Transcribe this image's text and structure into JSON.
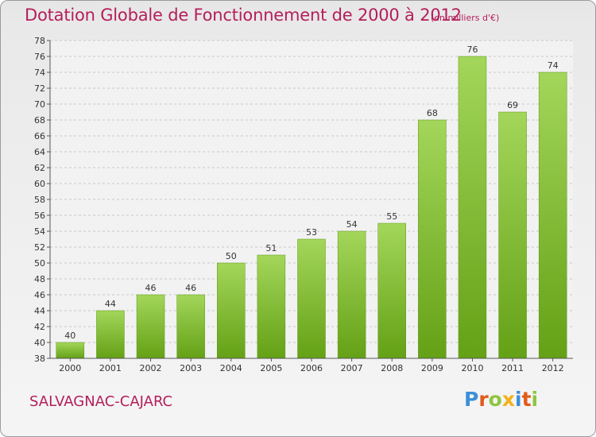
{
  "header": {
    "title": "Dotation Globale de Fonctionnement de 2000 à 2012",
    "subtitle": "(en milliers d'€)"
  },
  "footer": {
    "commune": "SALVAGNAC-CAJARC",
    "logo_letters": [
      "P",
      "r",
      "o",
      "x",
      "i",
      "t",
      "i"
    ],
    "logo_colors": [
      "#3a8fd8",
      "#e25a1c",
      "#8cc63f",
      "#f2b21b",
      "#3a8fd8",
      "#e25a1c",
      "#8cc63f"
    ]
  },
  "colors": {
    "bar_light": "#a3d65a",
    "bar_dark": "#64a116",
    "grid": "#c8c8c8",
    "axis": "#555555",
    "title": "#b41e5a"
  },
  "chart_data": {
    "type": "bar",
    "title": "Dotation Globale de Fonctionnement de 2000 à 2012",
    "subtitle": "(en milliers d'€)",
    "categories": [
      "2000",
      "2001",
      "2002",
      "2003",
      "2004",
      "2005",
      "2006",
      "2007",
      "2008",
      "2009",
      "2010",
      "2011",
      "2012"
    ],
    "values": [
      40,
      44,
      46,
      46,
      50,
      51,
      53,
      54,
      55,
      68,
      76,
      69,
      74
    ],
    "ylim": [
      38,
      78
    ],
    "yticks": [
      38,
      40,
      42,
      44,
      46,
      48,
      50,
      52,
      54,
      56,
      58,
      60,
      62,
      64,
      66,
      68,
      70,
      72,
      74,
      76,
      78
    ],
    "grid": true,
    "xlabel": "",
    "ylabel": ""
  }
}
